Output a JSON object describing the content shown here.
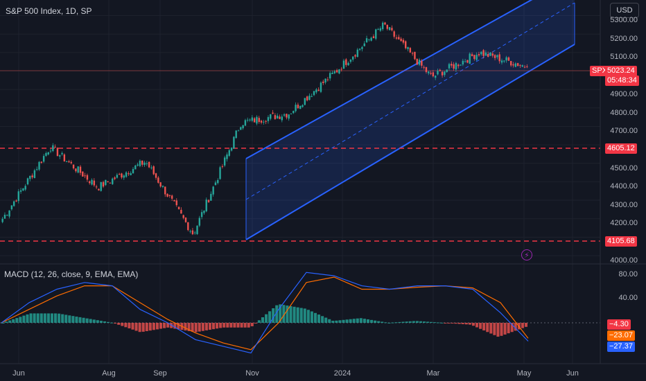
{
  "header": {
    "title": "S&P 500 Index, 1D, SP",
    "currency": "USD"
  },
  "price_pane": {
    "y_ticks": [
      "5300.00",
      "5200.00",
      "5100.00",
      "4900.00",
      "4800.00",
      "4700.00",
      "4500.00",
      "4400.00",
      "4300.00",
      "4200.00",
      "4000.00"
    ],
    "symbol_badge": "SPX",
    "last_price": "5023.24",
    "countdown": "05:48:34",
    "resistance_label": "4605.12",
    "support_label": "4105.68",
    "colors": {
      "up": "#26a69a",
      "down": "#ef5350",
      "channel": "#2962ff",
      "level": "#f23645"
    }
  },
  "macd_pane": {
    "title": "MACD (12, 26, close, 9, EMA, EMA)",
    "y_ticks": [
      "80.00",
      "40.00"
    ],
    "histogram_label": "−4.30",
    "signal_label": "−23.07",
    "macd_label": "−27.37",
    "colors": {
      "macd": "#2962ff",
      "signal": "#ff6d00"
    }
  },
  "x_axis": {
    "labels": [
      "Jun",
      "Aug",
      "Sep",
      "Nov",
      "2024",
      "Mar",
      "May",
      "Jun"
    ]
  },
  "chart_data": [
    {
      "type": "candlestick",
      "title": "S&P 500 Index, 1D, SP",
      "x_labels": [
        "Jun",
        "Aug",
        "Sep",
        "Nov",
        "2024",
        "Mar",
        "May",
        "Jun"
      ],
      "ylim": [
        4000,
        5350
      ],
      "key_points": [
        {
          "label": "Jun",
          "close": 4200
        },
        {
          "label": "late Jul",
          "close": 4590
        },
        {
          "label": "mid Aug",
          "close": 4370
        },
        {
          "label": "early Sep",
          "close": 4510
        },
        {
          "label": "late Oct",
          "close": 4117
        },
        {
          "label": "mid Dec",
          "close": 4720
        },
        {
          "label": "2024",
          "close": 4770
        },
        {
          "label": "Feb",
          "close": 5000
        },
        {
          "label": "late Mar",
          "close": 5250
        },
        {
          "label": "mid Apr",
          "close": 4967
        },
        {
          "label": "late Apr",
          "close": 5100
        },
        {
          "label": "May",
          "close": 5023.24
        }
      ],
      "horizontal_levels": [
        4605.12,
        4105.68
      ],
      "last_price": 5023.24
    },
    {
      "type": "line",
      "title": "MACD (12, 26, close, 9, EMA, EMA)",
      "ylim": [
        -40,
        95
      ],
      "series": [
        {
          "name": "MACD",
          "values": [
            0,
            30,
            50,
            60,
            55,
            20,
            0,
            -25,
            -35,
            -45,
            20,
            75,
            70,
            55,
            50,
            55,
            55,
            50,
            15,
            -27.37
          ]
        },
        {
          "name": "Signal",
          "values": [
            0,
            20,
            40,
            55,
            55,
            30,
            5,
            -15,
            -30,
            -40,
            0,
            60,
            68,
            50,
            50,
            53,
            55,
            52,
            30,
            -23.07
          ]
        }
      ],
      "histogram_last": -4.3
    }
  ]
}
